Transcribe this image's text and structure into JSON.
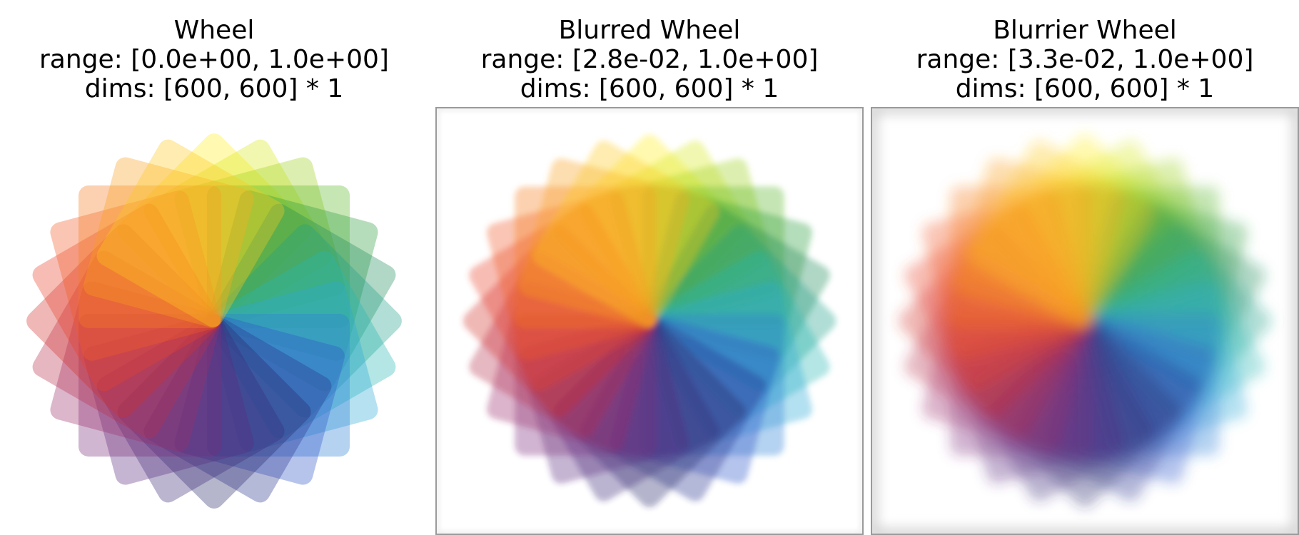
{
  "panels": [
    {
      "title": "Wheel",
      "range": "range: [0.0e+00, 1.0e+00]",
      "dims": "dims: [600, 600] * 1"
    },
    {
      "title": "Blurred Wheel",
      "range": "range: [2.8e-02, 1.0e+00]",
      "dims": "dims: [600, 600] * 1"
    },
    {
      "title": "Blurrier Wheel",
      "range": "range: [3.3e-02, 1.0e+00]",
      "dims": "dims: [600, 600] * 1"
    }
  ],
  "wheel": {
    "petal_count": 24,
    "petal_colors": [
      "#ffee22",
      "#d8e81a",
      "#9ed21c",
      "#5cb828",
      "#2e9e3c",
      "#1f8c5c",
      "#1fa08a",
      "#24b8b4",
      "#2aa8d8",
      "#2e7ed8",
      "#2f57c8",
      "#2b3690",
      "#2a2a6e",
      "#3c2a78",
      "#5a2c7e",
      "#7c2f7c",
      "#9a2f6a",
      "#b8304e",
      "#d2302e",
      "#e8422a",
      "#f25c24",
      "#f67a20",
      "#f8a020",
      "#fcc81e"
    ],
    "petal_opacity": 0.35
  }
}
